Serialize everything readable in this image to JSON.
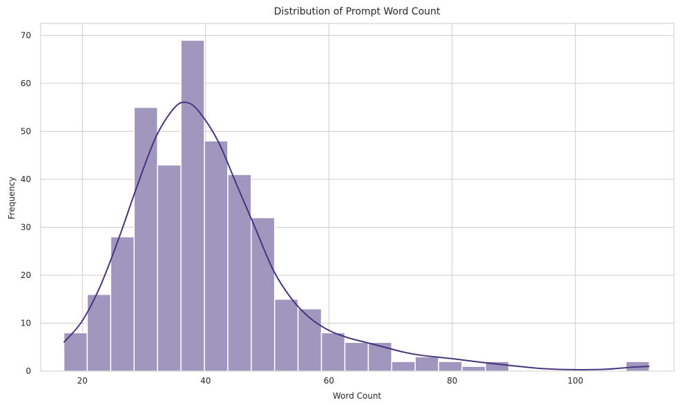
{
  "chart_data": {
    "type": "bar",
    "title": "Distribution of Prompt Word Count",
    "xlabel": "Word Count",
    "ylabel": "Frequency",
    "xlim": [
      13.25,
      116.0
    ],
    "ylim": [
      0,
      72.5
    ],
    "x_ticks": [
      20,
      40,
      60,
      80,
      100
    ],
    "y_ticks": [
      0,
      10,
      20,
      30,
      40,
      50,
      60,
      70
    ],
    "grid": true,
    "bins": [
      {
        "x0": 17.0,
        "x1": 20.8,
        "value": 8
      },
      {
        "x0": 20.8,
        "x1": 24.6,
        "value": 16
      },
      {
        "x0": 24.6,
        "x1": 28.4,
        "value": 28
      },
      {
        "x0": 28.4,
        "x1": 32.2,
        "value": 55
      },
      {
        "x0": 32.2,
        "x1": 36.0,
        "value": 43
      },
      {
        "x0": 36.0,
        "x1": 39.8,
        "value": 69
      },
      {
        "x0": 39.8,
        "x1": 43.6,
        "value": 48
      },
      {
        "x0": 43.6,
        "x1": 47.4,
        "value": 41
      },
      {
        "x0": 47.4,
        "x1": 51.2,
        "value": 32
      },
      {
        "x0": 51.2,
        "x1": 55.0,
        "value": 15
      },
      {
        "x0": 55.0,
        "x1": 58.8,
        "value": 13
      },
      {
        "x0": 58.8,
        "x1": 62.6,
        "value": 8
      },
      {
        "x0": 62.6,
        "x1": 66.4,
        "value": 6
      },
      {
        "x0": 66.4,
        "x1": 70.2,
        "value": 6
      },
      {
        "x0": 70.2,
        "x1": 74.0,
        "value": 2
      },
      {
        "x0": 74.0,
        "x1": 77.8,
        "value": 3
      },
      {
        "x0": 77.8,
        "x1": 81.6,
        "value": 2
      },
      {
        "x0": 81.6,
        "x1": 85.4,
        "value": 1
      },
      {
        "x0": 85.4,
        "x1": 89.2,
        "value": 2
      },
      {
        "x0": 108.2,
        "x1": 112.0,
        "value": 2
      }
    ],
    "kde": [
      [
        17,
        6
      ],
      [
        20,
        10.5
      ],
      [
        23,
        18
      ],
      [
        26,
        28
      ],
      [
        29,
        39
      ],
      [
        32,
        49
      ],
      [
        35,
        55
      ],
      [
        37,
        56
      ],
      [
        39,
        54
      ],
      [
        42,
        48
      ],
      [
        45,
        39
      ],
      [
        48,
        30
      ],
      [
        51,
        21
      ],
      [
        54,
        15
      ],
      [
        57,
        11
      ],
      [
        60,
        8.5
      ],
      [
        63,
        7
      ],
      [
        66,
        6
      ],
      [
        69,
        5
      ],
      [
        72,
        4
      ],
      [
        75,
        3.3
      ],
      [
        80,
        2.6
      ],
      [
        85,
        1.8
      ],
      [
        90,
        1.1
      ],
      [
        95,
        0.5
      ],
      [
        100,
        0.3
      ],
      [
        105,
        0.4
      ],
      [
        109,
        0.8
      ],
      [
        112,
        1
      ]
    ],
    "colors": {
      "bar_fill": "#a196bd",
      "bar_stroke": "#ffffff",
      "kde_line": "#45337d",
      "grid": "#cccccc",
      "text": "#262626"
    }
  }
}
